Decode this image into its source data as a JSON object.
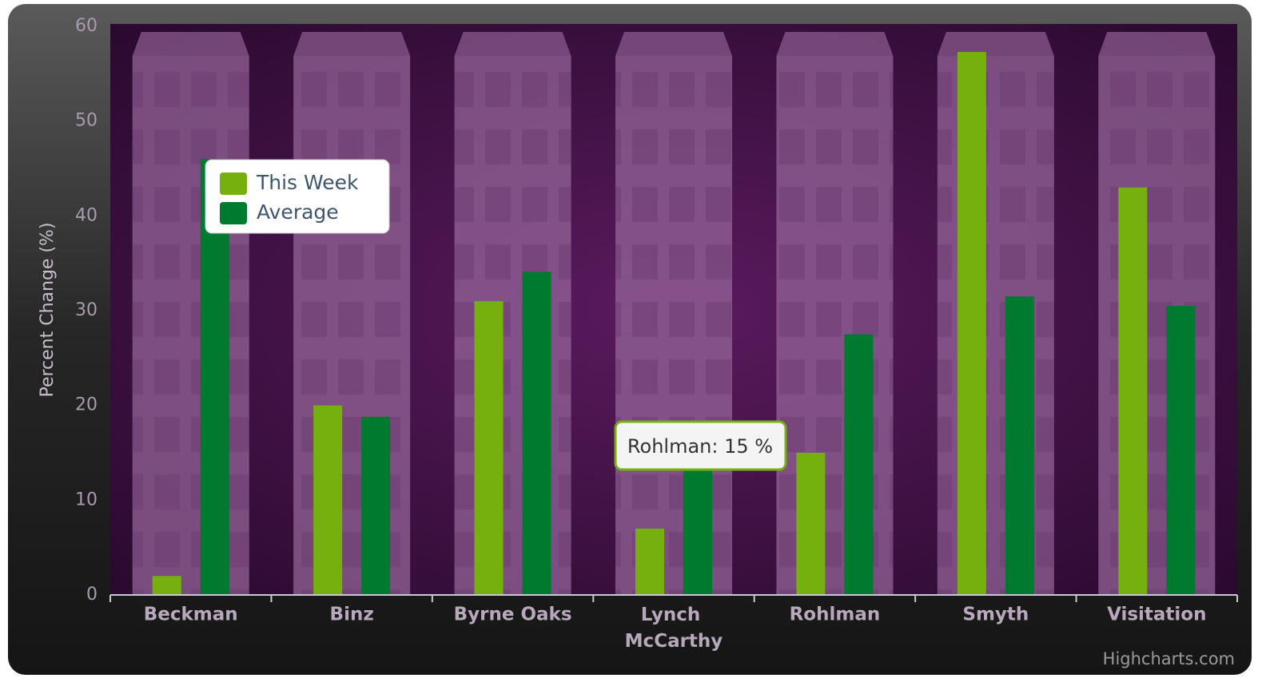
{
  "chart_data": {
    "type": "bar",
    "y_label": "Percent Change (%)",
    "categories": [
      "Beckman",
      "Binz",
      "Byrne Oaks",
      "Lynch McCarthy",
      "Rohlman",
      "Smyth",
      "Visitation"
    ],
    "series": [
      {
        "name": "This Week",
        "color": "#76b00e",
        "values": [
          2,
          20,
          31,
          7,
          15,
          57.3,
          43
        ]
      },
      {
        "name": "Average",
        "color": "#007a2e",
        "values": [
          46,
          18.8,
          34.1,
          14,
          27.5,
          31.5,
          30.5
        ]
      }
    ],
    "ylim": [
      0,
      60
    ],
    "yticks": [
      0,
      10,
      20,
      30,
      40,
      50,
      60
    ],
    "tooltip": "Rohlman: 15 %",
    "credits": "Highcharts.com"
  }
}
